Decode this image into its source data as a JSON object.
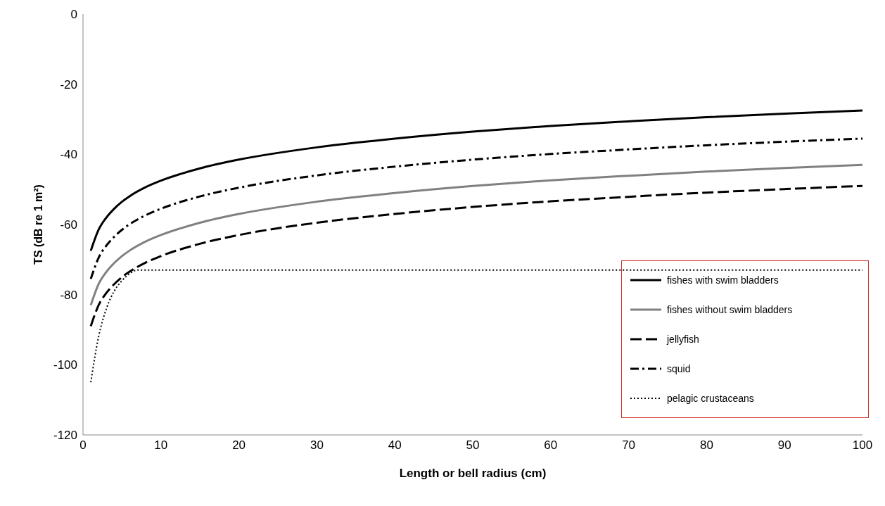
{
  "chart_data": {
    "type": "line",
    "xlabel": "Length or bell radius (cm)",
    "ylabel": "TS (dB re 1 m²)",
    "x": [
      1,
      2,
      3,
      4,
      5,
      6,
      8,
      10,
      15,
      20,
      30,
      40,
      50,
      60,
      70,
      80,
      90,
      100
    ],
    "series": [
      {
        "name": "fishes with swim bladders",
        "color": "#000000",
        "line_style": "solid",
        "values": [
          -67.5,
          -61.5,
          -58,
          -55.5,
          -53.5,
          -51.9,
          -49.4,
          -47.5,
          -44,
          -41.5,
          -38,
          -35.5,
          -33.5,
          -31.9,
          -30.6,
          -29.4,
          -28.4,
          -27.5
        ]
      },
      {
        "name": "fishes without swim bladders",
        "color": "#808080",
        "line_style": "solid",
        "values": [
          -83,
          -77,
          -73.5,
          -71,
          -69,
          -67.4,
          -64.9,
          -63,
          -59.5,
          -57,
          -53.5,
          -51,
          -49,
          -47.4,
          -46.1,
          -44.9,
          -43.9,
          -43
        ]
      },
      {
        "name": "jellyfish",
        "color": "#000000",
        "line_style": "dashed",
        "values": [
          -89,
          -83,
          -79.5,
          -77,
          -75,
          -73.4,
          -70.9,
          -69,
          -65.5,
          -63,
          -59.5,
          -57,
          -55,
          -53.4,
          -52.1,
          -50.9,
          -49.9,
          -49
        ]
      },
      {
        "name": "squid",
        "color": "#000000",
        "line_style": "dashdot",
        "values": [
          -75.5,
          -69.5,
          -66,
          -63.5,
          -61.5,
          -59.9,
          -57.4,
          -55.5,
          -52,
          -49.5,
          -46,
          -43.5,
          -41.5,
          -39.9,
          -38.6,
          -37.4,
          -36.4,
          -35.5
        ]
      },
      {
        "name": "pelagic crustaceans",
        "color": "#000000",
        "line_style": "dotted",
        "x": [
          1,
          2,
          3,
          4,
          5,
          6,
          7,
          8,
          100
        ],
        "values": [
          -105,
          -92,
          -84,
          -79,
          -76,
          -74,
          -73,
          -73,
          -73
        ]
      }
    ],
    "xlim": [
      0,
      100
    ],
    "xticks": [
      0,
      10,
      20,
      30,
      40,
      50,
      60,
      70,
      80,
      90,
      100
    ],
    "ylim": [
      -120,
      0
    ],
    "yticks": [
      -120,
      -100,
      -80,
      -60,
      -40,
      -20,
      0
    ],
    "grid": false,
    "legend": "bottom right",
    "marker": "none"
  }
}
